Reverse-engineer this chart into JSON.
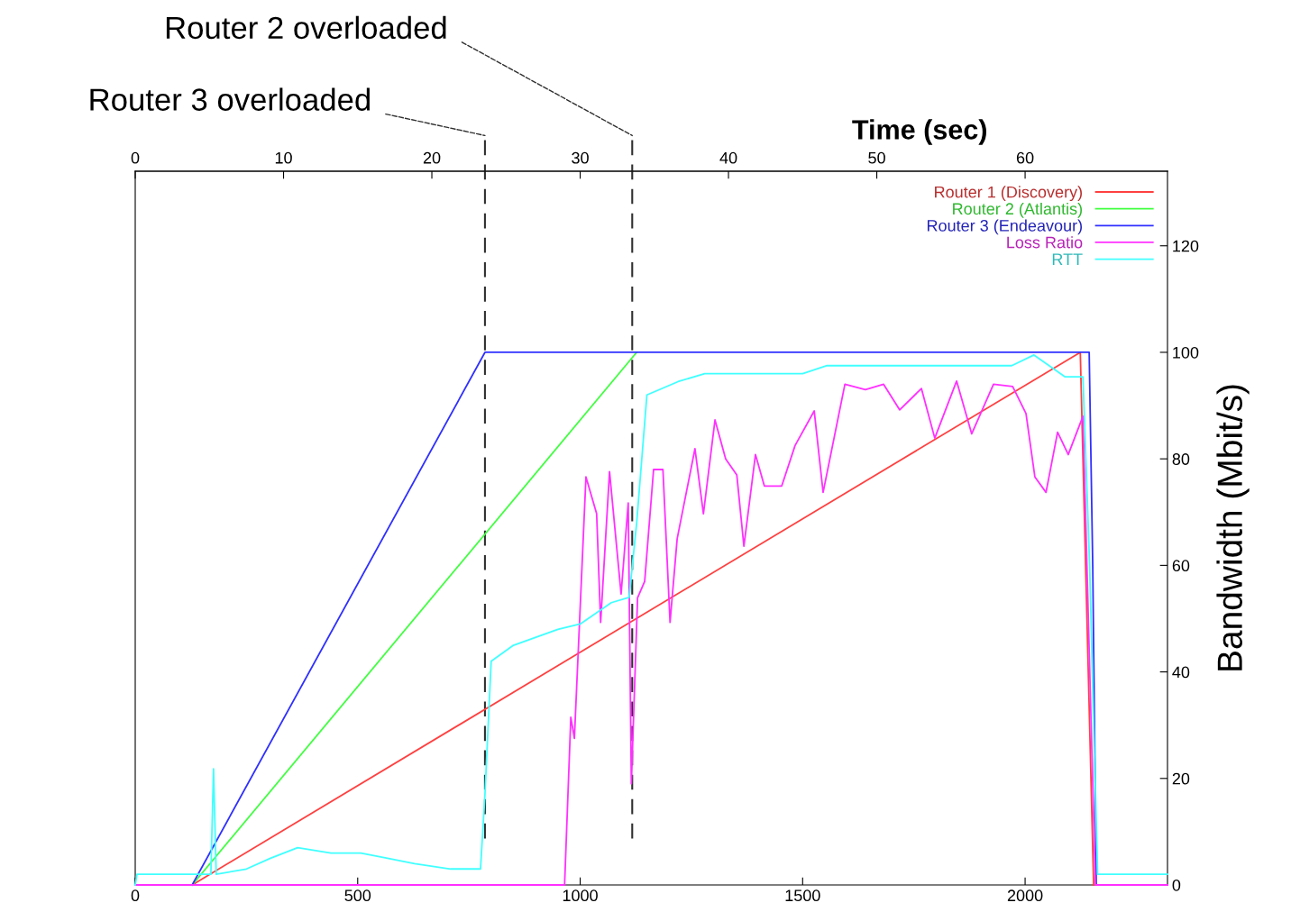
{
  "chart_data": {
    "type": "line",
    "x2label": "Time (sec)",
    "ylabel": "Bandwidth (Mbit/s)",
    "xlim": [
      0,
      2320
    ],
    "xticks": [
      0,
      500,
      1000,
      1500,
      2000
    ],
    "x2lim": [
      0,
      69.6
    ],
    "x2ticks": [
      0,
      10,
      20,
      30,
      40,
      50,
      60
    ],
    "ylim": [
      0,
      134
    ],
    "yticks": [
      0,
      20,
      40,
      60,
      80,
      100,
      120
    ],
    "legend": "top right",
    "grid": false,
    "line_style": "solid",
    "marker": "none",
    "series": [
      {
        "name": "Router 1 (Discovery)",
        "color": "#ff4040",
        "x": [
          128,
          2124,
          2154
        ],
        "values": [
          0,
          100,
          0
        ]
      },
      {
        "name": "Router 2 (Atlantis)",
        "color": "#40ff40",
        "x": [
          128,
          1127
        ],
        "values": [
          0,
          100
        ]
      },
      {
        "name": "Router 3 (Endeavour)",
        "color": "#3030ff",
        "x": [
          128,
          786,
          2144,
          2152,
          2160
        ],
        "values": [
          0,
          100,
          100,
          60,
          0
        ]
      },
      {
        "name": "Loss Ratio",
        "color": "#ff30ff",
        "x": [
          0,
          965,
          979,
          987,
          1013,
          1037,
          1046,
          1066,
          1092,
          1108,
          1115,
          1129,
          1145,
          1165,
          1186,
          1202,
          1218,
          1258,
          1277,
          1303,
          1327,
          1352,
          1368,
          1394,
          1414,
          1453,
          1483,
          1526,
          1546,
          1595,
          1641,
          1682,
          1718,
          1767,
          1797,
          1846,
          1880,
          1929,
          1972,
          2002,
          2022,
          2047,
          2073,
          2097,
          2130,
          2158,
          2320
        ],
        "values": [
          0,
          0,
          31.5,
          27.5,
          76.6,
          69.7,
          49.3,
          77.6,
          54.6,
          71.7,
          19,
          53.9,
          57,
          78,
          78,
          49.3,
          65,
          81.9,
          69.7,
          87.3,
          80,
          77,
          63.6,
          80.8,
          74.9,
          74.9,
          82.5,
          89,
          73.7,
          94,
          93,
          94,
          89.2,
          93.2,
          83.9,
          94.6,
          84.7,
          94,
          93.6,
          88.5,
          76.6,
          73.7,
          85,
          80.8,
          88,
          0,
          0
        ]
      },
      {
        "name": "RTT",
        "color": "#40ffff",
        "x": [
          0,
          4,
          170,
          176,
          182,
          250,
          304,
          365,
          440,
          507,
          567,
          628,
          709,
          776,
          786,
          800,
          850,
          950,
          1000,
          1070,
          1110,
          1127,
          1150,
          1220,
          1280,
          1500,
          1555,
          1970,
          2020,
          2090,
          2130,
          2145,
          2163,
          2320
        ],
        "values": [
          0,
          2,
          2,
          21.8,
          2,
          3,
          5,
          7,
          6,
          6,
          5,
          4,
          3,
          3,
          17,
          42,
          45,
          48,
          49,
          53,
          54,
          68,
          92,
          94.5,
          96,
          96,
          97.5,
          97.5,
          99.5,
          95.4,
          95.4,
          60,
          2,
          2
        ]
      }
    ],
    "ref_lines": [
      {
        "axis": "x",
        "value": 786,
        "label": "Router 3 overloaded",
        "color": "#303030",
        "line_style": "dashed"
      },
      {
        "axis": "x",
        "value": 1117,
        "label": "Router 2 overloaded",
        "color": "#303030",
        "line_style": "dashed"
      }
    ]
  }
}
